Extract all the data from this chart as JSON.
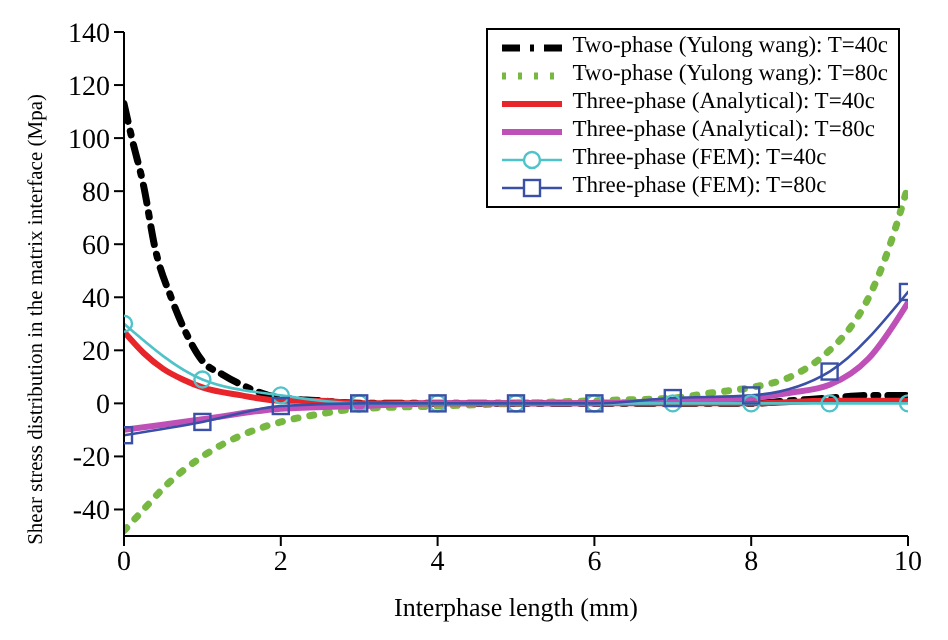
{
  "chart_data": {
    "type": "line",
    "xlabel": "Interphase length (mm)",
    "ylabel": "Shear stress distribution in the matrix interface (Mpa)",
    "xlim": [
      0,
      10
    ],
    "ylim": [
      -50,
      140
    ],
    "xticks": [
      0,
      2,
      4,
      6,
      8,
      10
    ],
    "yticks": [
      -40,
      -20,
      0,
      20,
      40,
      60,
      80,
      100,
      120,
      140
    ],
    "grid": false,
    "legend": "top right",
    "series": [
      {
        "name": "Two-phase (Yulong wang): T=40c",
        "color": "#000000",
        "line_style": "dashed",
        "marker": "none",
        "x": [
          0,
          0.1,
          0.25,
          0.4,
          0.6,
          0.8,
          1,
          1.25,
          1.5,
          2,
          2.5,
          3,
          4,
          5,
          6,
          7,
          8,
          8.5,
          9,
          9.5,
          10
        ],
        "values": [
          113,
          100,
          82,
          58,
          40,
          26,
          16,
          11,
          7,
          2,
          1,
          0,
          0,
          0,
          0,
          0,
          0,
          1,
          2,
          3,
          3
        ]
      },
      {
        "name": "Two-phase (Yulong wang): T=80c",
        "color": "#77b843",
        "line_style": "dotted",
        "marker": "none",
        "x": [
          0,
          0.25,
          0.5,
          1,
          1.5,
          2,
          2.5,
          3,
          4,
          5,
          6,
          7,
          7.5,
          8,
          8.5,
          9,
          9.25,
          9.5,
          9.75,
          10
        ],
        "values": [
          -48,
          -40,
          -32,
          -20,
          -12,
          -7,
          -4,
          -2,
          -1,
          0,
          1,
          2,
          4,
          6,
          10,
          20,
          28,
          40,
          58,
          82
        ]
      },
      {
        "name": "Three-phase (Analytical): T=40c",
        "color": "#e8252a",
        "line_style": "solid",
        "marker": "none",
        "x": [
          0,
          0.25,
          0.5,
          0.75,
          1,
          1.5,
          2,
          2.5,
          3,
          4,
          6,
          8,
          9,
          10
        ],
        "values": [
          27,
          19,
          13,
          9,
          6,
          3,
          1,
          1,
          0,
          0,
          0,
          0,
          1,
          1
        ]
      },
      {
        "name": "Three-phase (Analytical): T=80c",
        "color": "#bf50b8",
        "line_style": "solid",
        "marker": "none",
        "x": [
          0,
          1,
          2,
          3,
          4,
          5,
          6,
          7,
          8,
          8.5,
          9,
          9.5,
          10
        ],
        "values": [
          -10,
          -6,
          -2,
          -1,
          0,
          0,
          0,
          1,
          2,
          4,
          7,
          17,
          38
        ]
      },
      {
        "name": "Three-phase (FEM): T=40c",
        "color": "#4fc3c9",
        "line_style": "solid",
        "marker": "circle",
        "x": [
          0,
          1,
          2,
          3,
          4,
          5,
          6,
          7,
          8,
          9,
          10
        ],
        "values": [
          30,
          9,
          3,
          0,
          0,
          0,
          0,
          0,
          0,
          0,
          0
        ]
      },
      {
        "name": "Three-phase (FEM): T=80c",
        "color": "#3a4fa6",
        "line_style": "solid",
        "marker": "square",
        "x": [
          0,
          1,
          2,
          3,
          4,
          5,
          6,
          7,
          8,
          9,
          10
        ],
        "values": [
          -12,
          -7,
          -1,
          0,
          0,
          0,
          0,
          2,
          3,
          12,
          42
        ]
      }
    ]
  }
}
